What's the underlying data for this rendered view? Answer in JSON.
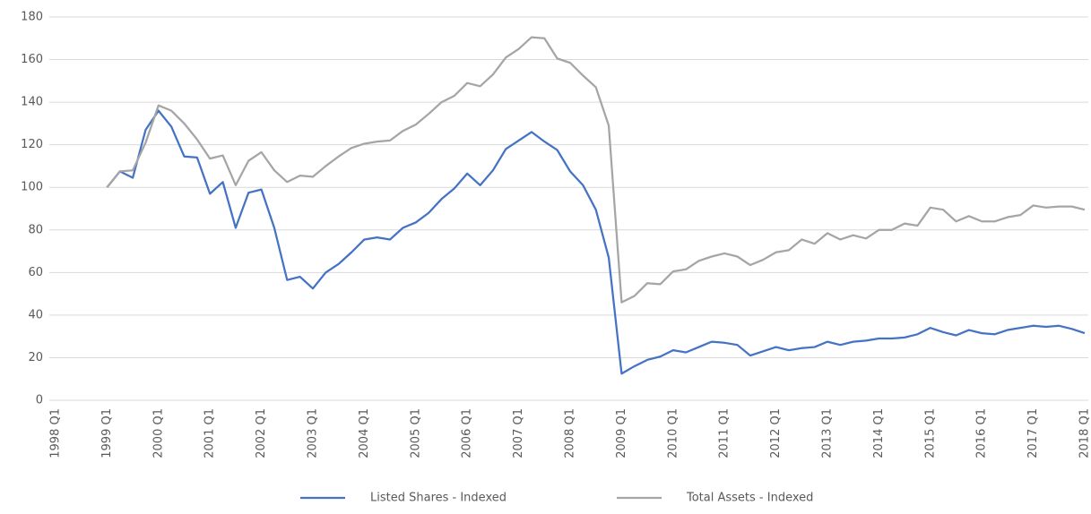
{
  "chart_data": {
    "type": "line",
    "categories": [
      "1998 Q1",
      null,
      null,
      null,
      "1999 Q1",
      null,
      null,
      null,
      "2000 Q1",
      null,
      null,
      null,
      "2001 Q1",
      null,
      null,
      null,
      "2002 Q1",
      null,
      null,
      null,
      "2003 Q1",
      null,
      null,
      null,
      "2004 Q1",
      null,
      null,
      null,
      "2005 Q1",
      null,
      null,
      null,
      "2006 Q1",
      null,
      null,
      null,
      "2007 Q1",
      null,
      null,
      null,
      "2008 Q1",
      null,
      null,
      null,
      "2009 Q1",
      null,
      null,
      null,
      "2010 Q1",
      null,
      null,
      null,
      "2011 Q1",
      null,
      null,
      null,
      "2012 Q1",
      null,
      null,
      null,
      "2013 Q1",
      null,
      null,
      null,
      "2014 Q1",
      null,
      null,
      null,
      "2015 Q1",
      null,
      null,
      null,
      "2016 Q1",
      null,
      null,
      null,
      "2017 Q1",
      null,
      null,
      null,
      "2018 Q1"
    ],
    "series": [
      {
        "name": "Listed Shares - Indexed",
        "color": "#4472c4",
        "values": [
          null,
          null,
          null,
          null,
          100,
          107.5,
          104.5,
          127,
          136,
          128.5,
          114.5,
          114,
          97,
          102.5,
          81,
          97.5,
          99,
          81,
          56.5,
          58,
          52.5,
          60,
          64,
          69.5,
          75.5,
          76.5,
          75.5,
          81,
          83.5,
          88,
          94.5,
          99.5,
          106.5,
          101,
          108,
          118,
          122,
          126,
          121.5,
          117.5,
          107.5,
          101,
          89.5,
          67,
          12.5,
          16,
          19,
          20.5,
          23.5,
          22.5,
          25,
          27.5,
          27,
          26,
          21,
          23,
          25,
          23.5,
          24.5,
          25,
          27.5,
          26,
          27.5,
          28,
          29,
          29,
          29.5,
          31,
          34,
          32,
          30.5,
          33,
          31.5,
          31,
          33,
          34,
          35,
          34.5,
          35,
          33.5,
          31.5
        ]
      },
      {
        "name": "Total Assets - Indexed",
        "color": "#a5a5a5",
        "values": [
          null,
          null,
          null,
          null,
          100,
          107.5,
          108,
          121,
          138.5,
          136,
          130,
          122.5,
          113.5,
          115,
          101,
          112.5,
          116.5,
          108,
          102.5,
          105.5,
          105,
          110,
          114.5,
          118.5,
          120.5,
          121.5,
          122,
          126.5,
          129.5,
          134.5,
          140,
          143,
          149,
          147.5,
          153,
          161,
          165,
          170.5,
          170,
          160.5,
          158.5,
          152.5,
          147,
          129,
          46,
          49,
          55,
          54.5,
          60.5,
          61.5,
          65.5,
          67.5,
          69,
          67.5,
          63.5,
          66,
          69.5,
          70.5,
          75.5,
          73.5,
          78.5,
          75.5,
          77.5,
          76,
          80,
          80,
          83,
          82,
          90.5,
          89.5,
          84,
          86.5,
          84,
          84,
          86,
          87,
          91.5,
          90.5,
          91,
          91,
          89.5
        ]
      }
    ],
    "ylim": [
      0,
      180
    ],
    "yticks": [
      0,
      20,
      40,
      60,
      80,
      100,
      120,
      140,
      160,
      180
    ],
    "grid": true,
    "legend": "bottom"
  }
}
